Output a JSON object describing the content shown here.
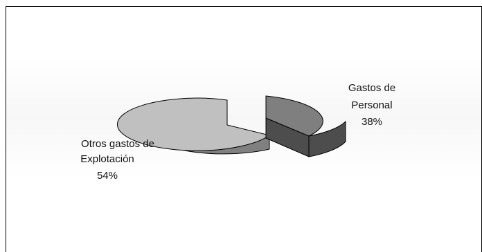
{
  "chart_data": {
    "type": "pie",
    "style": "3d-exploded",
    "title": "",
    "slices": [
      {
        "name": "Gastos de Personal",
        "label_lines": [
          "Gastos de",
          "Personal"
        ],
        "percent_label": "38%",
        "value": 38,
        "color_top": "#7f7f7f",
        "color_side": "#4d4d4d"
      },
      {
        "name": "Otros gastos de Explotación",
        "label_lines": [
          "Otros gastos de",
          "Explotación"
        ],
        "percent_label": "54%",
        "value": 54,
        "color_top": "#c0c0c0",
        "color_side": "#808080"
      }
    ]
  }
}
